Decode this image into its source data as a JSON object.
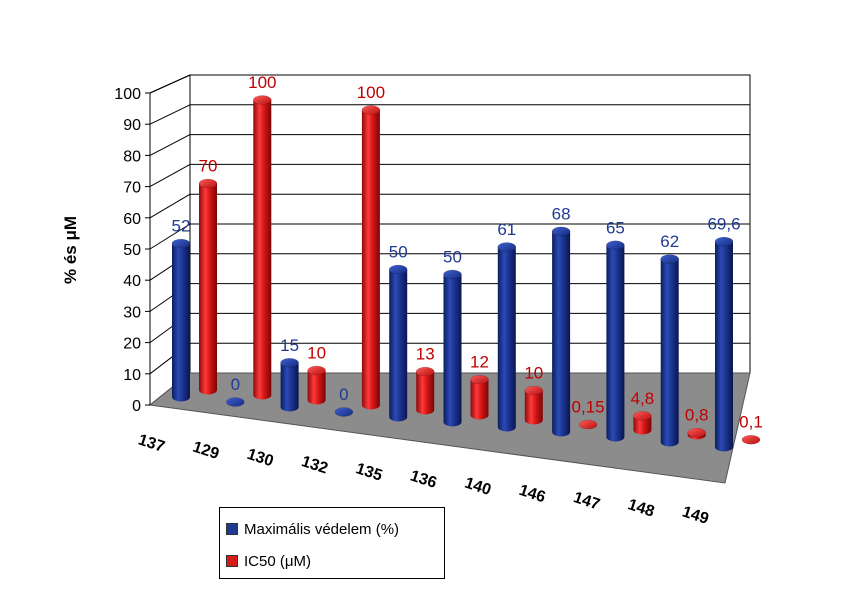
{
  "chart_data": {
    "type": "bar",
    "title": "",
    "xlabel": "",
    "ylabel": "% és μM",
    "ylim": [
      0,
      100
    ],
    "yticks": [
      "0",
      "10",
      "20",
      "30",
      "40",
      "50",
      "60",
      "70",
      "80",
      "90",
      "100"
    ],
    "grid": true,
    "legend_position": "bottom",
    "categories": [
      "137",
      "129",
      "130",
      "132",
      "135",
      "136",
      "140",
      "146",
      "147",
      "148",
      "149"
    ],
    "series": [
      {
        "name": "Maximális védelem (%)",
        "color": "#1f3a93",
        "values": [
          52,
          0,
          15,
          0,
          50,
          50,
          61,
          68,
          65,
          62,
          69.6
        ],
        "labels": [
          "52",
          "0",
          "15",
          "0",
          "50",
          "50",
          "61",
          "68",
          "65",
          "62",
          "69,6"
        ],
        "label_color": "#1f3a93"
      },
      {
        "name": "IC50 (μM)",
        "color": "#d71a1a",
        "values": [
          70,
          100,
          10,
          100,
          13,
          12,
          10,
          0.15,
          4.8,
          0.8,
          0.1
        ],
        "labels": [
          "70",
          "100",
          "10",
          "100",
          "13",
          "12",
          "10",
          "0,15",
          "4,8",
          "0,8",
          "0,1"
        ],
        "label_color": "#c00000"
      }
    ]
  }
}
